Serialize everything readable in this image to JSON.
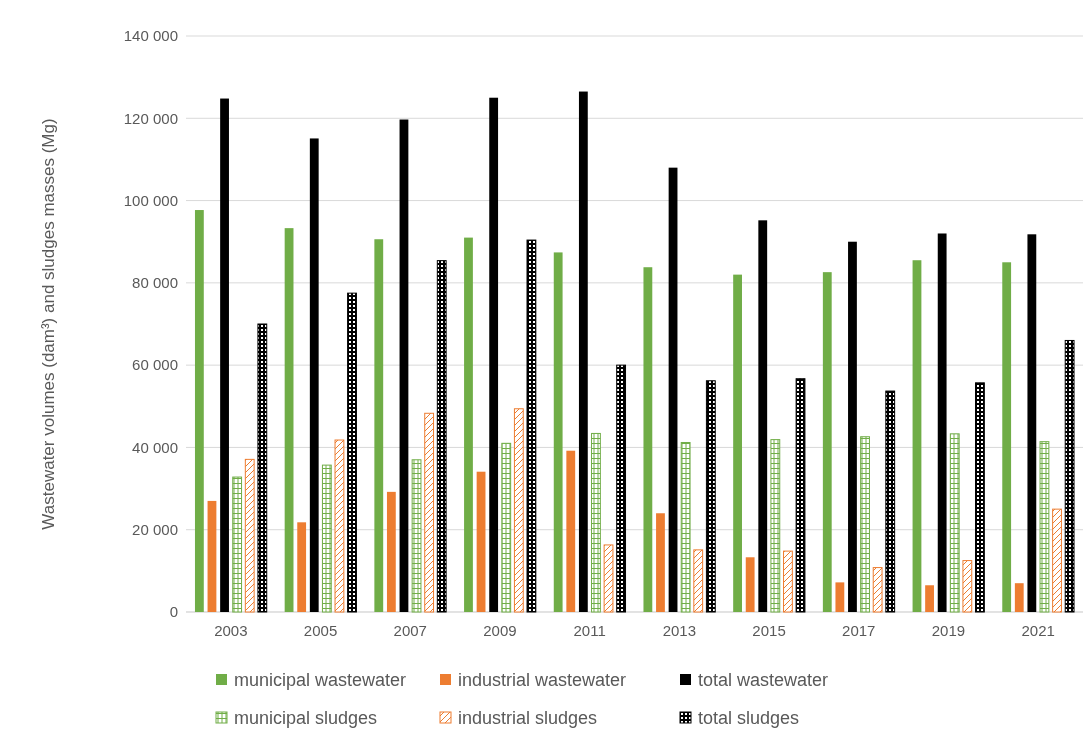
{
  "chart_data": {
    "type": "bar",
    "ylabel": "Wastewater volumes (dam³) and sludges masses (Mg)",
    "categories": [
      "2003",
      "2005",
      "2007",
      "2009",
      "2011",
      "2013",
      "2015",
      "2017",
      "2019",
      "2021"
    ],
    "series": [
      {
        "name": "municipal wastewater",
        "color": "#70ad47",
        "values": [
          97700,
          93300,
          90600,
          91000,
          87400,
          83800,
          82000,
          82600,
          85500,
          85000
        ]
      },
      {
        "name": "industrial wastewater",
        "color": "#ed7d31",
        "values": [
          27000,
          21800,
          29200,
          34100,
          39200,
          24000,
          13300,
          7200,
          6500,
          7000
        ]
      },
      {
        "name": "total wastewater",
        "color": "#000000",
        "values": [
          124800,
          115100,
          119700,
          125000,
          126500,
          108000,
          95200,
          90000,
          92000,
          91800
        ]
      },
      {
        "name": "municipal sludges",
        "color": "#70ad47",
        "values": [
          32800,
          35700,
          37000,
          41000,
          43400,
          41200,
          41900,
          42600,
          43300,
          41400
        ]
      },
      {
        "name": "industrial sludges",
        "color": "#ed7d31",
        "values": [
          37100,
          41800,
          48300,
          49400,
          16300,
          15100,
          14800,
          10800,
          12500,
          25000
        ]
      },
      {
        "name": "total sludges",
        "color": "#000000",
        "values": [
          70000,
          77500,
          85400,
          90400,
          60000,
          56200,
          56700,
          53700,
          55700,
          66000
        ]
      }
    ],
    "ylim": [
      0,
      140000
    ],
    "yticks": [
      0,
      {
        "value": 20000,
        "label": "20 000"
      },
      {
        "value": 40000,
        "label": "40 000"
      },
      {
        "value": 60000,
        "label": "60 000"
      },
      {
        "value": 80000,
        "label": "80 000"
      },
      {
        "value": 100000,
        "label": "100 000"
      },
      {
        "value": 120000,
        "label": "120 000"
      },
      {
        "value": 140000,
        "label": "140 000"
      }
    ],
    "grid": "y",
    "legend": "bottom"
  }
}
